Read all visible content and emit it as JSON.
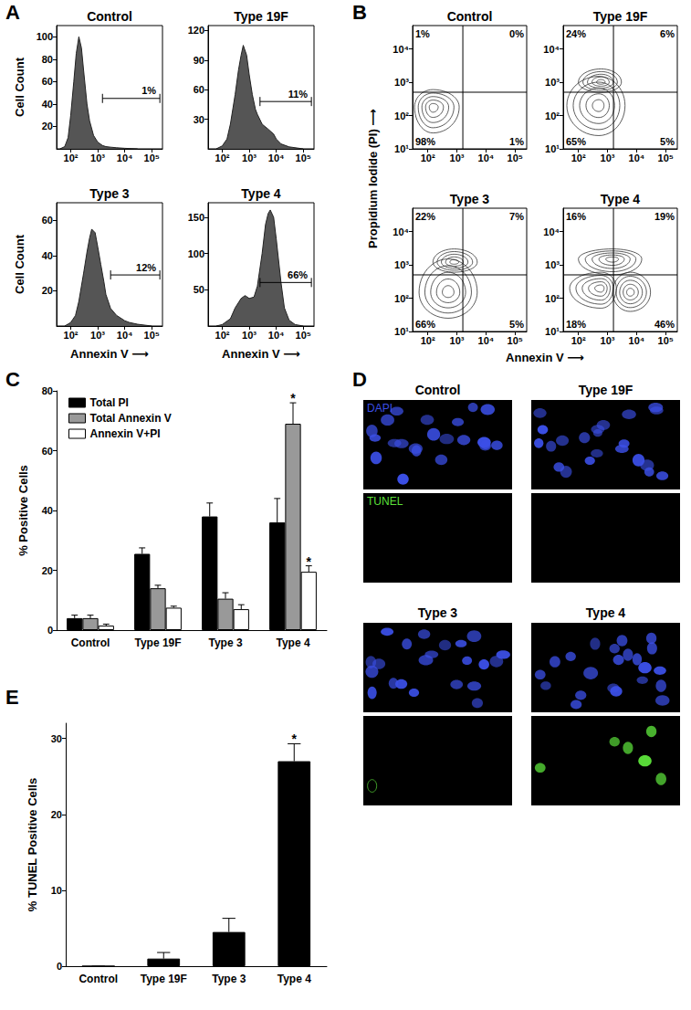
{
  "chart_data": [
    {
      "panel": "A",
      "type": "histogram",
      "log": "x",
      "color": "#555555",
      "xlim": [
        30,
        250000
      ],
      "xticks": [
        {
          "value": 100,
          "label": "10²"
        },
        {
          "value": 1000,
          "label": "10³"
        },
        {
          "value": 10000,
          "label": "10⁴"
        },
        {
          "value": 100000,
          "label": "10⁵"
        }
      ],
      "plots": [
        {
          "title": "Control",
          "ylabel": "Cell Count",
          "ylim": [
            0,
            110
          ],
          "yticks": [
            20,
            40,
            60,
            80,
            100
          ],
          "x": [
            40,
            60,
            80,
            100,
            130,
            160,
            200,
            250,
            300,
            400,
            500,
            700,
            1000,
            1500,
            2000,
            3000,
            5000,
            10000,
            30000
          ],
          "values": [
            0,
            2,
            10,
            30,
            60,
            85,
            100,
            90,
            70,
            40,
            25,
            12,
            6,
            3,
            2,
            1.5,
            1,
            0.5,
            0
          ],
          "gate": {
            "x": [
              1500,
              200000
            ],
            "y": 45,
            "label": "1%"
          }
        },
        {
          "title": "Type 19F",
          "ylim": [
            0,
            125
          ],
          "yticks": [
            30,
            60,
            90,
            120
          ],
          "x": [
            60,
            100,
            150,
            200,
            300,
            400,
            500,
            600,
            800,
            1000,
            1300,
            1700,
            2000,
            3000,
            5000,
            8000,
            10000,
            15000,
            30000,
            100000
          ],
          "values": [
            0,
            3,
            10,
            25,
            55,
            80,
            95,
            105,
            95,
            75,
            55,
            40,
            35,
            25,
            20,
            15,
            10,
            5,
            2,
            0
          ],
          "gate": {
            "x": [
              2500,
              200000
            ],
            "y": 48,
            "label": "11%"
          }
        },
        {
          "title": "Type 3",
          "ylabel": "Cell Count",
          "xlabel": "Annexin V ⟶",
          "ylim": [
            0,
            70
          ],
          "yticks": [
            20,
            40,
            60
          ],
          "x": [
            60,
            100,
            150,
            200,
            300,
            400,
            500,
            600,
            800,
            1000,
            1300,
            1700,
            2000,
            3000,
            5000,
            8000,
            10000,
            15000,
            30000,
            100000
          ],
          "values": [
            0,
            2,
            6,
            14,
            30,
            42,
            50,
            55,
            53,
            45,
            35,
            25,
            18,
            10,
            6,
            4,
            3,
            2,
            1,
            0
          ],
          "gate": {
            "x": [
              3000,
              200000
            ],
            "y": 29,
            "label": "12%"
          }
        },
        {
          "title": "Type 4",
          "xlabel": "Annexin V ⟶",
          "ylim": [
            0,
            170
          ],
          "yticks": [
            50,
            100,
            150
          ],
          "x": [
            60,
            100,
            200,
            300,
            500,
            700,
            1000,
            1500,
            2000,
            3000,
            4000,
            5000,
            6000,
            8000,
            10000,
            15000,
            20000,
            30000,
            50000,
            100000
          ],
          "values": [
            0,
            2,
            10,
            25,
            38,
            42,
            38,
            40,
            55,
            100,
            140,
            155,
            160,
            150,
            120,
            60,
            25,
            8,
            2,
            0
          ],
          "gate": {
            "x": [
              2500,
              200000
            ],
            "y": 60,
            "label": "66%"
          }
        }
      ]
    },
    {
      "panel": "B",
      "type": "contour",
      "log": true,
      "xlabel": "Annexin V ⟶",
      "ylabel": "Propidium Iodide (PI) ⟶",
      "xlim": [
        30,
        250000
      ],
      "xticks": [
        {
          "value": 100,
          "label": "10²"
        },
        {
          "value": 1000,
          "label": "10³"
        },
        {
          "value": 10000,
          "label": "10⁴"
        },
        {
          "value": 100000,
          "label": "10⁵"
        }
      ],
      "ylim": [
        10,
        50000
      ],
      "yticks": [
        {
          "value": 10,
          "label": "10¹"
        },
        {
          "value": 100,
          "label": "10²"
        },
        {
          "value": 1000,
          "label": "10³"
        },
        {
          "value": 10000,
          "label": "10⁴"
        }
      ],
      "quadrant": {
        "x": 1600,
        "y": 500
      },
      "plots": [
        {
          "title": "Control",
          "quadrant_labels": [
            "1%",
            "0%",
            "98%",
            "1%"
          ],
          "populations": [
            {
              "center": [
                150,
                180
              ],
              "x_range": [
                35,
                1200
              ],
              "y_range": [
                30,
                600
              ]
            }
          ]
        },
        {
          "title": "Type 19F",
          "quadrant_labels": [
            "24%",
            "6%",
            "65%",
            "5%"
          ],
          "populations": [
            {
              "center": [
                500,
                200
              ],
              "x_range": [
                40,
                4000
              ],
              "y_range": [
                25,
                1500
              ]
            },
            {
              "center": [
                600,
                1000
              ],
              "x_range": [
                100,
                3000
              ],
              "y_range": [
                500,
                2500
              ]
            }
          ]
        },
        {
          "title": "Type 3",
          "quadrant_labels": [
            "22%",
            "7%",
            "66%",
            "5%"
          ],
          "populations": [
            {
              "center": [
                500,
                150
              ],
              "x_range": [
                50,
                5000
              ],
              "y_range": [
                25,
                1500
              ]
            },
            {
              "center": [
                800,
                1200
              ],
              "x_range": [
                150,
                5000
              ],
              "y_range": [
                600,
                3000
              ]
            }
          ]
        },
        {
          "title": "Type 4",
          "quadrant_labels": [
            "16%",
            "19%",
            "18%",
            "46%"
          ],
          "populations": [
            {
              "center": [
                6000,
                150
              ],
              "x_range": [
                1500,
                30000
              ],
              "y_range": [
                40,
                600
              ]
            },
            {
              "center": [
                600,
                200
              ],
              "x_range": [
                50,
                2000
              ],
              "y_range": [
                50,
                600
              ]
            },
            {
              "center": [
                1500,
                1500
              ],
              "x_range": [
                100,
                15000
              ],
              "y_range": [
                500,
                3000
              ]
            }
          ]
        }
      ]
    },
    {
      "panel": "C",
      "type": "bar",
      "ylabel": "% Positive Cells",
      "categories": [
        "Control",
        "Type 19F",
        "Type 3",
        "Type 4"
      ],
      "ylim": [
        0,
        80
      ],
      "yticks": [
        0,
        20,
        40,
        60,
        80
      ],
      "legend": "top-left",
      "series": [
        {
          "name": "Total PI",
          "color": "#000000",
          "values": [
            4,
            25.5,
            38,
            36
          ],
          "errors": [
            1,
            2,
            4.5,
            8
          ]
        },
        {
          "name": "Total Annexin V",
          "color": "#999999",
          "values": [
            4,
            14,
            10.5,
            69
          ],
          "errors": [
            1,
            1,
            2,
            7
          ]
        },
        {
          "name": "Annexin V+PI",
          "color": "#ffffff",
          "values": [
            1.5,
            7.5,
            7,
            19.5
          ],
          "errors": [
            0.5,
            0.5,
            1.5,
            2
          ]
        }
      ],
      "annotations": [
        {
          "category": "Type 4",
          "series": "Total Annexin V",
          "text": "*"
        },
        {
          "category": "Type 4",
          "series": "Annexin V+PI",
          "text": "*"
        }
      ]
    },
    {
      "panel": "D",
      "type": "image",
      "colors": [
        "#3b4fe6",
        "#5be03a"
      ],
      "images": [
        {
          "title": "Control",
          "channel_labels": [
            "DAPI",
            "TUNEL"
          ]
        },
        {
          "title": "Type 19F"
        },
        {
          "title": "Type 3"
        },
        {
          "title": "Type 4"
        }
      ]
    },
    {
      "panel": "E",
      "type": "bar",
      "ylabel": "% TUNEL Positive Cells",
      "categories": [
        "Control",
        "Type 19F",
        "Type 3",
        "Type 4"
      ],
      "ylim": [
        0,
        32
      ],
      "yticks": [
        0,
        10,
        20,
        30
      ],
      "color": "#000000",
      "values": [
        0,
        1,
        4.5,
        27
      ],
      "errors": [
        0,
        0.8,
        1.8,
        2.3
      ],
      "annotations": [
        {
          "category": "Type 4",
          "text": "*"
        }
      ]
    }
  ]
}
